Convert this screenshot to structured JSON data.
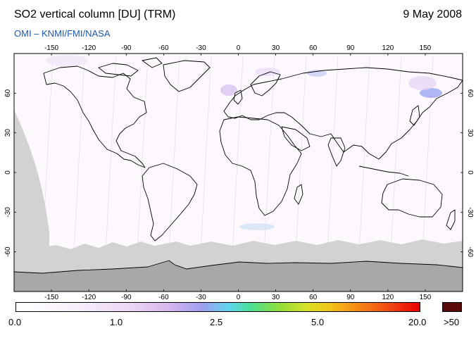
{
  "header": {
    "title": "SO2 vertical column [DU] (TRM)",
    "date": "9 May 2008",
    "subtitle": "OMI  –  KNMI/FMI/NASA"
  },
  "map": {
    "lon_ticks": [
      "-150",
      "-120",
      "-90",
      "-60",
      "-30",
      "0",
      "30",
      "60",
      "90",
      "120",
      "150"
    ],
    "lat_ticks": [
      "60",
      "30",
      "0",
      "-30",
      "-60"
    ],
    "projection": "equirectangular",
    "no_data_color": "#d2d2d2",
    "antarctica_color": "#a8a8a8",
    "coastline_color": "#000000"
  },
  "colorbar": {
    "labels": [
      "0.0",
      "1.0",
      "2.5",
      "5.0",
      "20.0",
      ">50"
    ],
    "overflow_color": "#5a0a0a"
  }
}
